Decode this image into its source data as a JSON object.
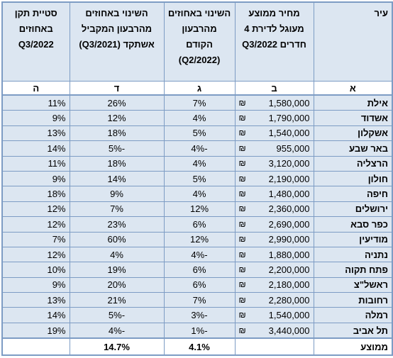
{
  "header": {
    "columns": [
      "עיר",
      "מחיר ממוצע מעוגל לדירת 4 חדרים Q3/2022",
      "השינוי באחוזים מהרבעון הקודם (Q2/2022)",
      "השינוי באחוזים מהרבעון המקביל אשתקד (Q3/2021)",
      "סטיית תקן באחוזים Q3/2022"
    ],
    "letters": [
      "א",
      "ב",
      "ג",
      "ד",
      "ה"
    ]
  },
  "currency_symbol": "₪",
  "rows": [
    [
      "אילת",
      "1,580,000",
      "7%",
      "26%",
      "11%"
    ],
    [
      "אשדוד",
      "1,790,000",
      "4%",
      "12%",
      "9%"
    ],
    [
      "אשקלון",
      "1,540,000",
      "5%",
      "18%",
      "13%"
    ],
    [
      "באר שבע",
      "955,000",
      "-4%",
      "-5%",
      "14%"
    ],
    [
      "הרצליה",
      "3,120,000",
      "4%",
      "18%",
      "11%"
    ],
    [
      "חולון",
      "2,190,000",
      "5%",
      "14%",
      "9%"
    ],
    [
      "חיפה",
      "1,480,000",
      "4%",
      "9%",
      "18%"
    ],
    [
      "ירושלים",
      "2,360,000",
      "12%",
      "7%",
      "12%"
    ],
    [
      "כפר סבא",
      "2,690,000",
      "6%",
      "23%",
      "12%"
    ],
    [
      "מודיעין",
      "2,990,000",
      "12%",
      "60%",
      "7%"
    ],
    [
      "נתניה",
      "1,880,000",
      "-4%",
      "4%",
      "12%"
    ],
    [
      "פתח תקוה",
      "2,200,000",
      "6%",
      "19%",
      "10%"
    ],
    [
      "ראשל\"צ",
      "2,180,000",
      "6%",
      "20%",
      "9%"
    ],
    [
      "רחובות",
      "2,280,000",
      "7%",
      "21%",
      "13%"
    ],
    [
      "רמלה",
      "1,540,000",
      "-3%",
      "-5%",
      "14%"
    ],
    [
      "תל אביב",
      "3,440,000",
      "-1%",
      "-4%",
      "19%"
    ]
  ],
  "average": {
    "label": "ממוצע",
    "change_quarter": "4.1%",
    "change_year": "14.7%"
  }
}
